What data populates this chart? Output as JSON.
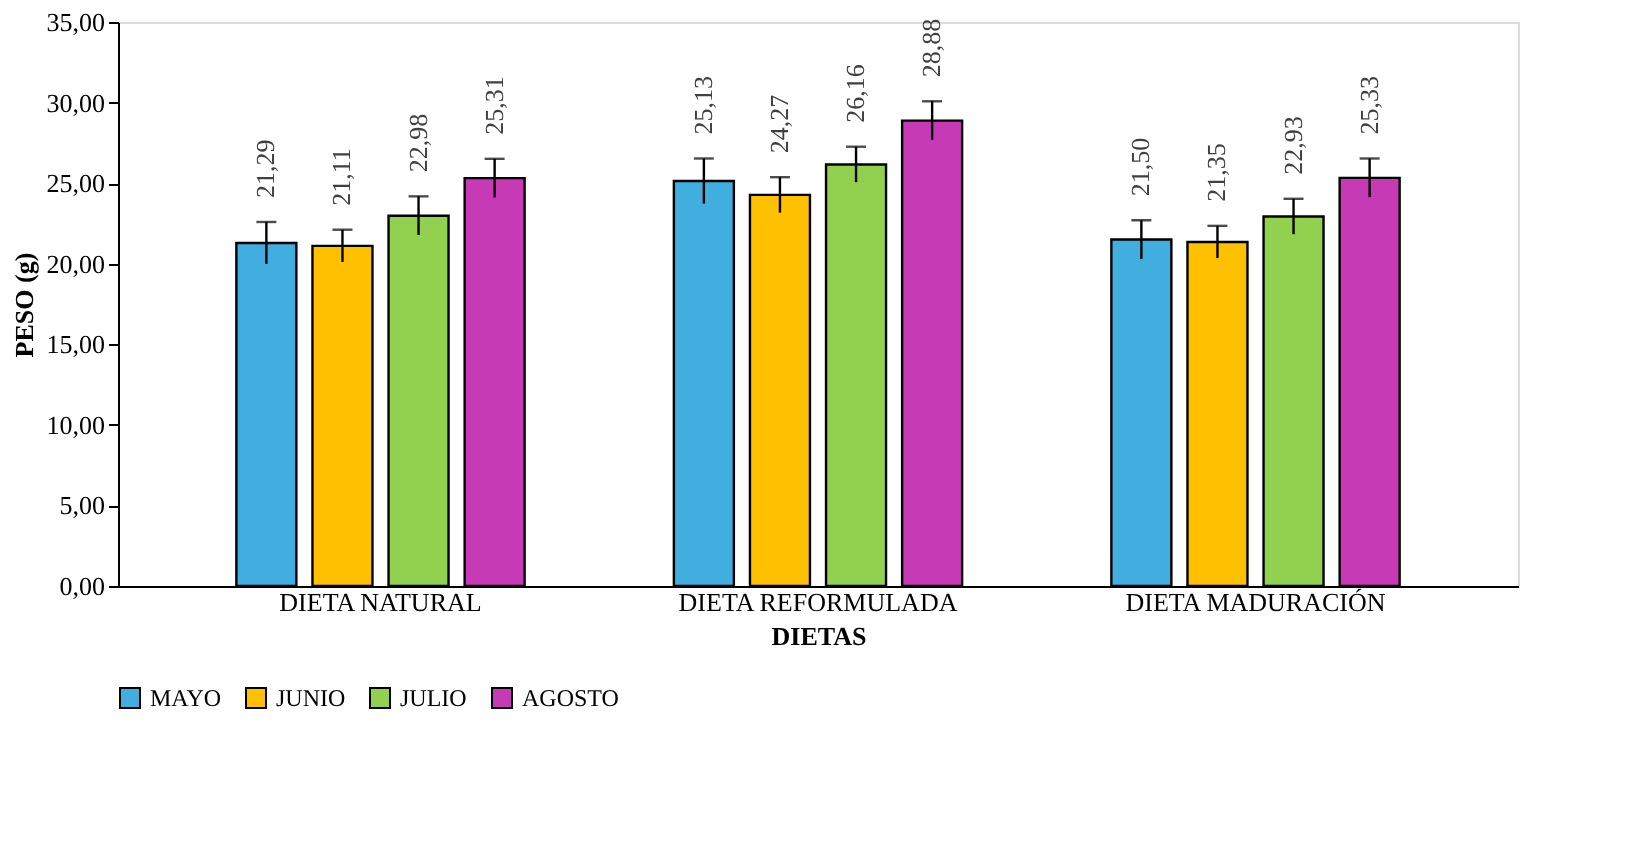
{
  "chart_data": {
    "type": "bar",
    "xlabel": "DIETAS",
    "ylabel": "PESO (g)",
    "categories": [
      "DIETA NATURAL",
      "DIETA REFORMULADA",
      "DIETA MADURACIÓN"
    ],
    "series": [
      {
        "name": "MAYO",
        "color": "#41aee0",
        "values": [
          21.29,
          25.13,
          21.5
        ],
        "errors": [
          1.3,
          1.4,
          1.2
        ],
        "value_labels": [
          "21,29",
          "25,13",
          "21,50"
        ]
      },
      {
        "name": "JUNIO",
        "color": "#ffc000",
        "values": [
          21.11,
          24.27,
          21.35
        ],
        "errors": [
          1.0,
          1.1,
          1.0
        ],
        "value_labels": [
          "21,11",
          "24,27",
          "21,35"
        ]
      },
      {
        "name": "JULIO",
        "color": "#92d050",
        "values": [
          22.98,
          26.16,
          22.93
        ],
        "errors": [
          1.2,
          1.1,
          1.1
        ],
        "value_labels": [
          "22,98",
          "26,16",
          "22,93"
        ]
      },
      {
        "name": "AGOSTO",
        "color": "#c63bb5",
        "values": [
          25.31,
          28.88,
          25.33
        ],
        "errors": [
          1.2,
          1.2,
          1.2
        ],
        "value_labels": [
          "25,31",
          "28,88",
          "25,33"
        ]
      }
    ],
    "ylim": [
      0,
      35
    ],
    "yticks": [
      {
        "value": 0,
        "label": "0,00"
      },
      {
        "value": 5,
        "label": "5,00"
      },
      {
        "value": 10,
        "label": "10,00"
      },
      {
        "value": 15,
        "label": "15,00"
      },
      {
        "value": 20,
        "label": "20,00"
      },
      {
        "value": 25,
        "label": "25,00"
      },
      {
        "value": 30,
        "label": "30,00"
      },
      {
        "value": 35,
        "label": "35,00"
      }
    ],
    "grid": false,
    "legend": "bottom"
  }
}
